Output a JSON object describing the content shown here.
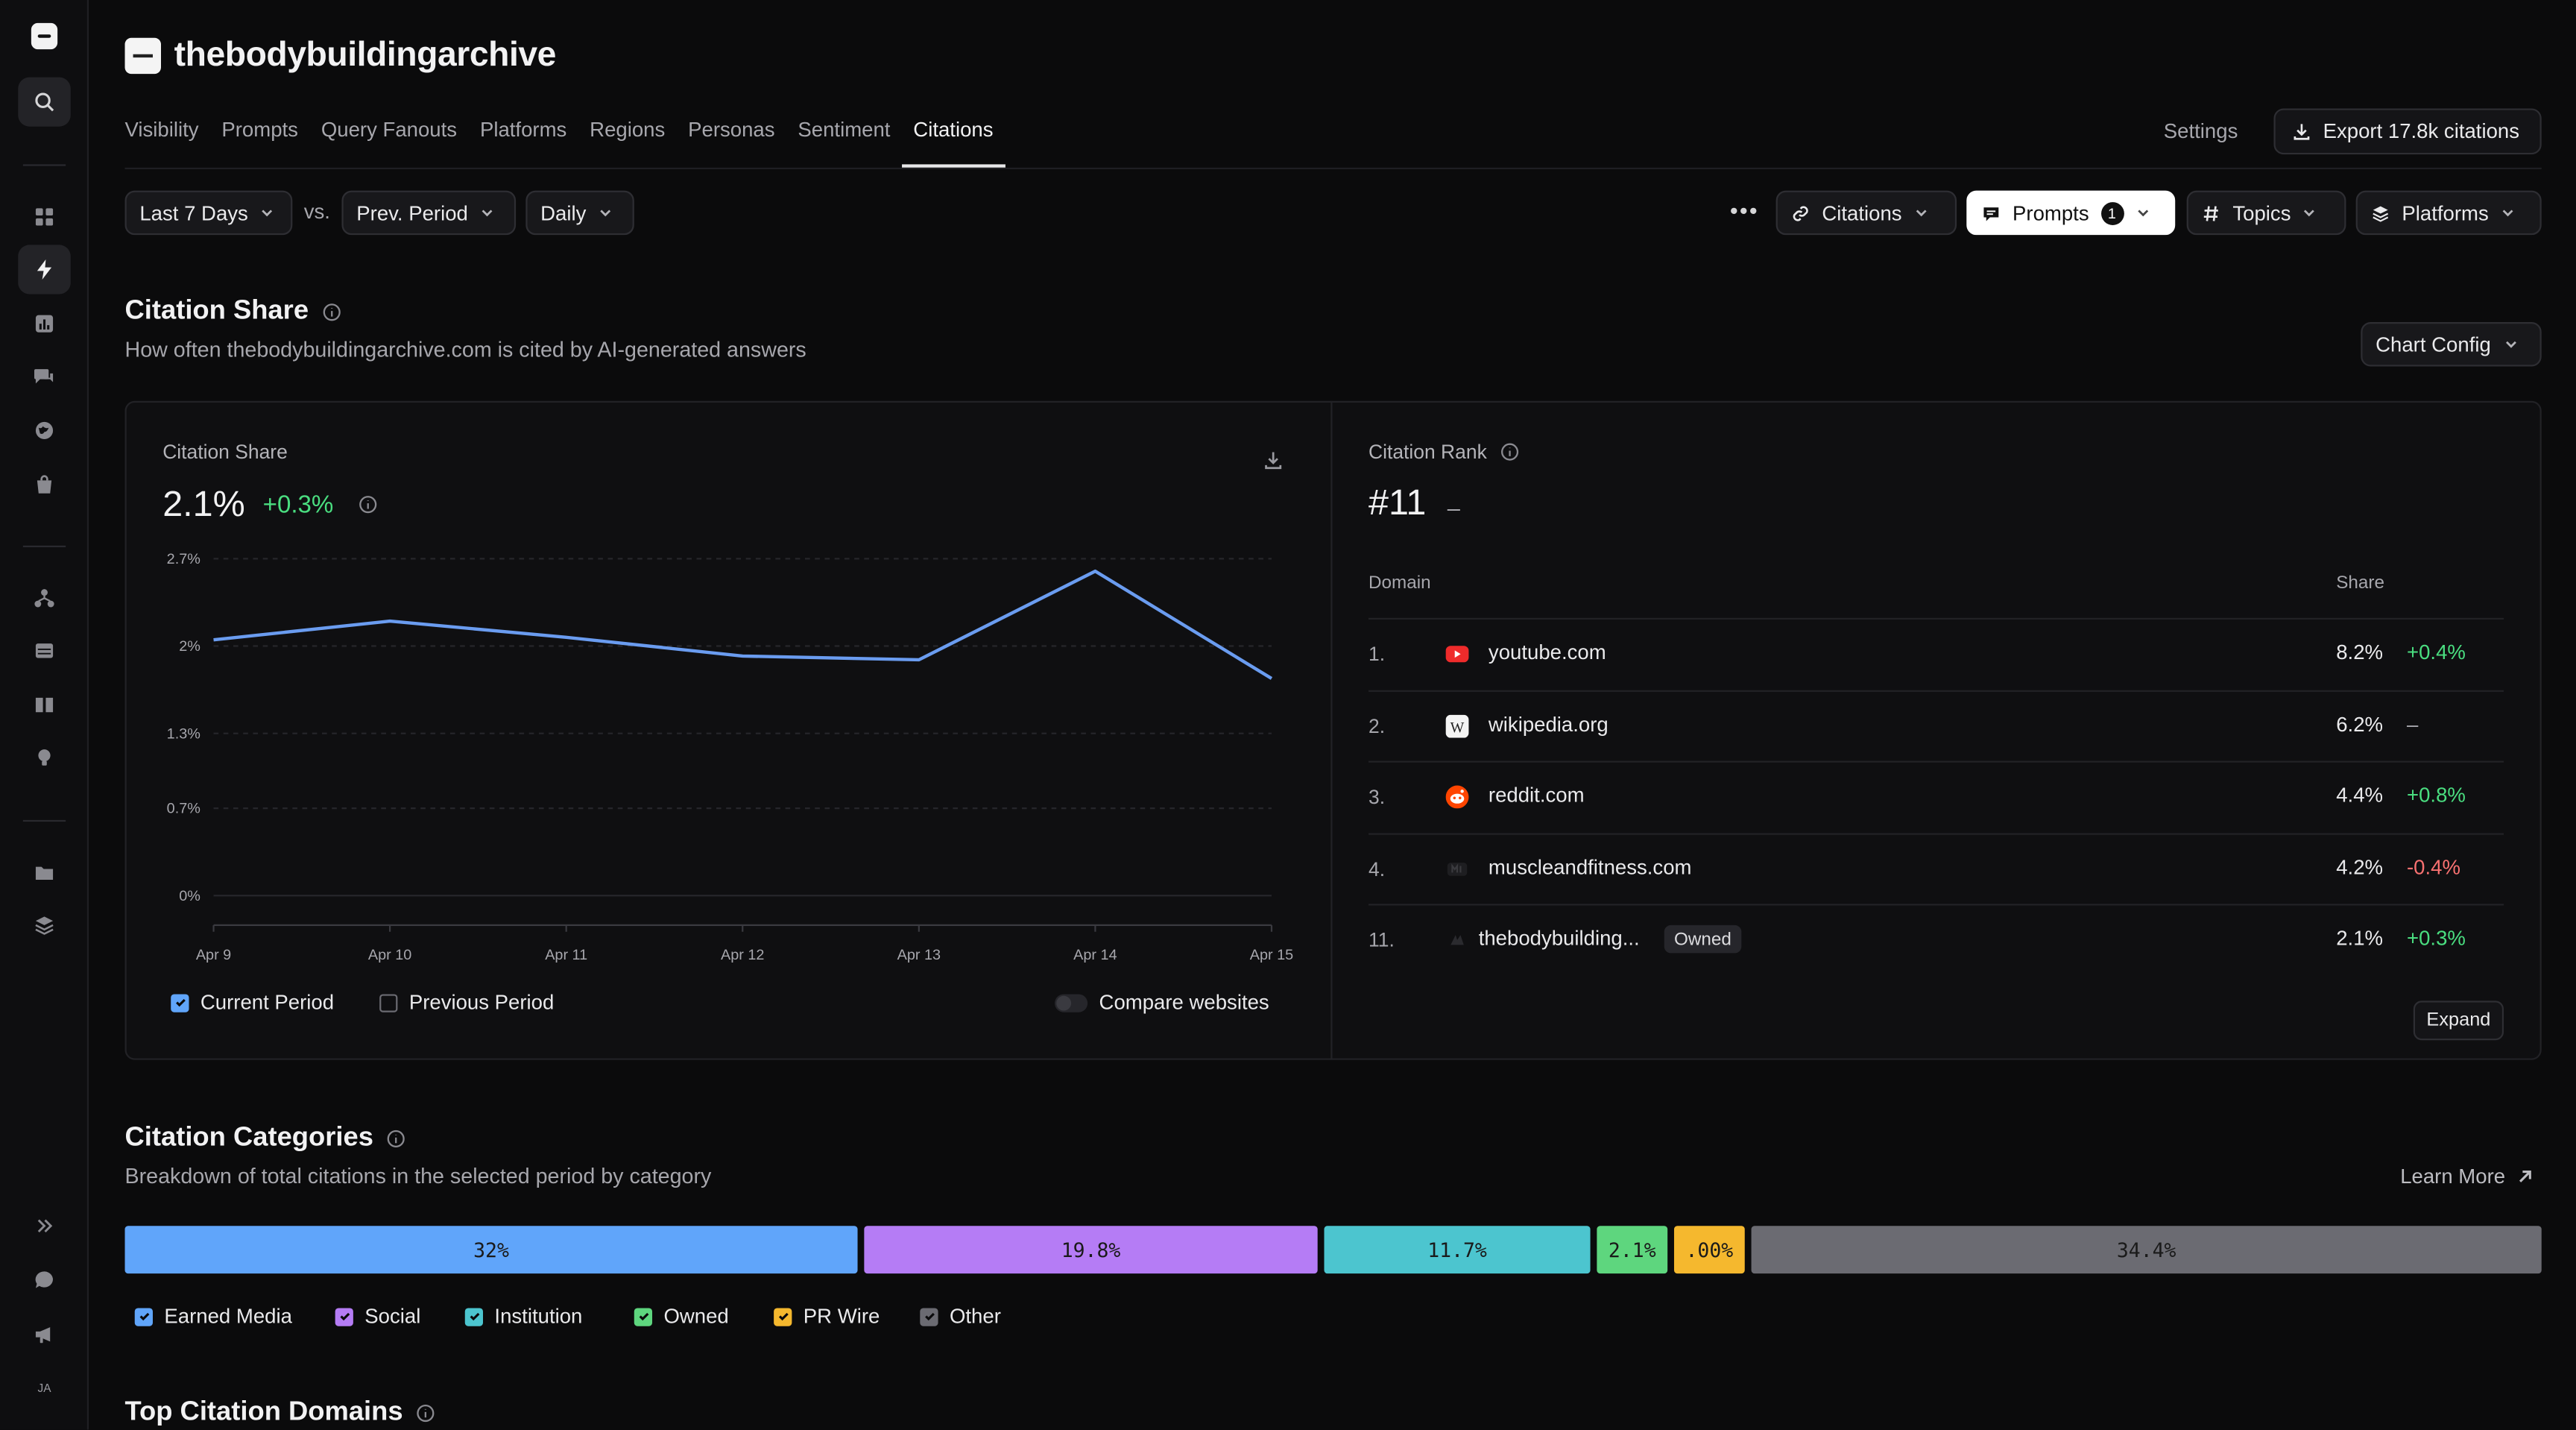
{
  "brand": {
    "name": "thebodybuildingarchive"
  },
  "tabs": [
    "Visibility",
    "Prompts",
    "Query Fanouts",
    "Platforms",
    "Regions",
    "Personas",
    "Sentiment",
    "Citations"
  ],
  "active_tab": "Citations",
  "header": {
    "settings": "Settings",
    "export": "Export 17.8k citations"
  },
  "filters": {
    "period": "Last 7 Days",
    "vs": "vs.",
    "compare": "Prev. Period",
    "granularity": "Daily",
    "citations": "Citations",
    "prompts": "Prompts",
    "prompts_count": "1",
    "topics": "Topics",
    "platforms": "Platforms"
  },
  "citation_share_section": {
    "title": "Citation Share",
    "subtitle": "How often thebodybuildingarchive.com is cited by AI-generated answers",
    "chart_config": "Chart Config"
  },
  "share_panel": {
    "label": "Citation Share",
    "value": "2.1%",
    "delta": "+0.3%",
    "legend_current": "Current Period",
    "legend_previous": "Previous Period",
    "compare_websites": "Compare websites"
  },
  "chart_data": {
    "type": "line",
    "x": [
      "Apr 9",
      "Apr 10",
      "Apr 11",
      "Apr 12",
      "Apr 13",
      "Apr 14",
      "Apr 15"
    ],
    "series": [
      {
        "name": "Current Period",
        "values": [
          2.05,
          2.2,
          2.07,
          1.92,
          1.89,
          2.6,
          1.74
        ],
        "color": "#6a9cf0"
      }
    ],
    "y_ticks": [
      "2.7%",
      "2%",
      "1.3%",
      "0.7%",
      "0%"
    ],
    "ylim": [
      0,
      2.7
    ],
    "grid": true
  },
  "rank_panel": {
    "label": "Citation Rank",
    "value": "#11",
    "dash": "–",
    "col_domain": "Domain",
    "col_share": "Share",
    "rows": [
      {
        "rank": "1.",
        "domain": "youtube.com",
        "share": "8.2%",
        "change": "+0.4%",
        "dir": "pos",
        "icon": "youtube-icon"
      },
      {
        "rank": "2.",
        "domain": "wikipedia.org",
        "share": "6.2%",
        "change": "–",
        "dir": "neu",
        "icon": "wikipedia-icon"
      },
      {
        "rank": "3.",
        "domain": "reddit.com",
        "share": "4.4%",
        "change": "+0.8%",
        "dir": "pos",
        "icon": "reddit-icon"
      },
      {
        "rank": "4.",
        "domain": "muscleandfitness.com",
        "share": "4.2%",
        "change": "-0.4%",
        "dir": "neg",
        "icon": "muscleandfitness-icon"
      },
      {
        "rank": "11.",
        "domain": "thebodybuilding...",
        "share": "2.1%",
        "change": "+0.3%",
        "dir": "pos",
        "icon": "thebodybuildingarchive-icon",
        "badge": "Owned"
      }
    ],
    "expand": "Expand"
  },
  "categories_section": {
    "title": "Citation Categories",
    "subtitle": "Breakdown of total citations in the selected period by category",
    "learn_more": "Learn More",
    "bars": [
      {
        "label": "32%",
        "color": "#60a5fa",
        "name": "Earned Media"
      },
      {
        "label": "19.8%",
        "color": "#b57cf5",
        "name": "Social"
      },
      {
        "label": "11.7%",
        "color": "#4cc5cf",
        "name": "Institution"
      },
      {
        "label": "2.1%",
        "color": "#5ed67e",
        "name": "Owned"
      },
      {
        "label": ".00%",
        "color": "#f5b82e",
        "name": "PR Wire"
      },
      {
        "label": "34.4%",
        "color": "#6b6b72",
        "name": "Other"
      }
    ]
  },
  "top_domains_section": {
    "title": "Top Citation Domains"
  }
}
